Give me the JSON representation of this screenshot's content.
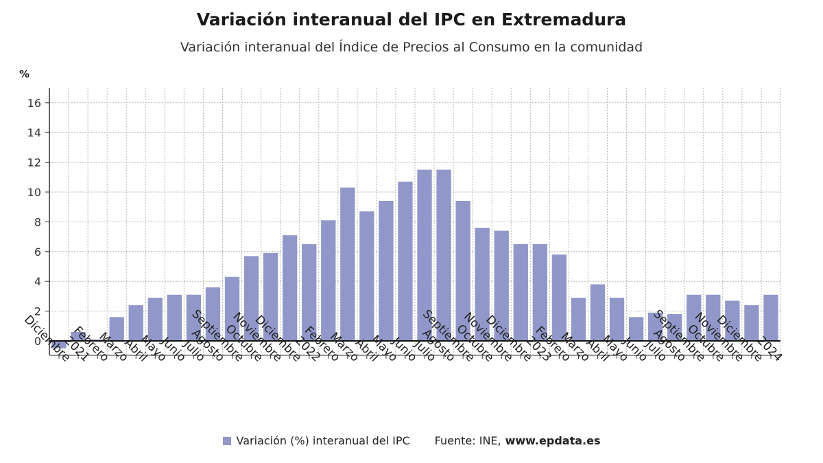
{
  "title": "Variación interanual del IPC en Extremadura",
  "subtitle": "Variación interanual del Índice de Precios al Consumo en la comunidad",
  "legend": {
    "label": "Variación (%) interanual del IPC"
  },
  "source": {
    "prefix": "Fuente: INE,",
    "site": "www.epdata.es"
  },
  "colors": {
    "bar": "#9198c9",
    "grid": "#b5b5b5",
    "axis": "#333333"
  },
  "chart_data": {
    "type": "bar",
    "title": "Variación interanual del IPC en Extremadura",
    "ylabel": "%",
    "xlabel": "",
    "ylim": [
      -1,
      17
    ],
    "yticks": [
      0,
      2,
      4,
      6,
      8,
      10,
      12,
      14,
      16
    ],
    "grid": true,
    "categories": [
      "Diciembre",
      "2021",
      "Febrero",
      "Marzo",
      "Abril",
      "Mayo",
      "Junio",
      "Julio",
      "Agosto",
      "Septiembre",
      "Octubre",
      "Noviembre",
      "Diciembre",
      "2022",
      "Febrero",
      "Marzo",
      "Abril",
      "Mayo",
      "Junio",
      "Julio",
      "Agosto",
      "Septiembre",
      "Octubre",
      "Noviembre",
      "Diciembre",
      "2023",
      "Febrero",
      "Marzo",
      "Abril",
      "Mayo",
      "Junio",
      "Julio",
      "Agosto",
      "Septiembre",
      "Octubre",
      "Noviembre",
      "Diciembre",
      "2024"
    ],
    "series": [
      {
        "name": "Variación (%) interanual del IPC",
        "values": [
          -0.5,
          0.6,
          0.1,
          1.6,
          2.4,
          2.9,
          3.1,
          3.1,
          3.6,
          4.3,
          5.7,
          5.9,
          7.1,
          6.5,
          8.1,
          10.3,
          8.7,
          9.4,
          10.7,
          11.5,
          11.5,
          9.4,
          7.6,
          7.4,
          6.5,
          6.5,
          5.8,
          2.9,
          3.8,
          2.9,
          1.6,
          1.9,
          1.8,
          3.1,
          3.1,
          2.7,
          2.4,
          3.1
        ]
      }
    ]
  }
}
